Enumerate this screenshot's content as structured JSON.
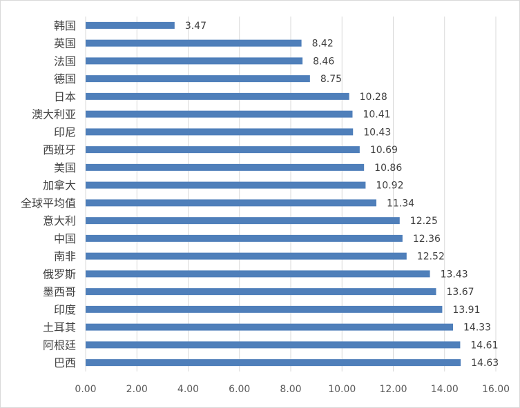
{
  "chart_data": {
    "type": "bar",
    "orientation": "horizontal",
    "categories": [
      "韩国",
      "英国",
      "法国",
      "德国",
      "日本",
      "澳大利亚",
      "印尼",
      "西班牙",
      "美国",
      "加拿大",
      "全球平均值",
      "意大利",
      "中国",
      "南非",
      "俄罗斯",
      "墨西哥",
      "印度",
      "土耳其",
      "阿根廷",
      "巴西"
    ],
    "values": [
      3.47,
      8.42,
      8.46,
      8.75,
      10.28,
      10.41,
      10.43,
      10.69,
      10.86,
      10.92,
      11.34,
      12.25,
      12.36,
      12.52,
      13.43,
      13.67,
      13.91,
      14.33,
      14.61,
      14.63
    ],
    "value_labels": [
      "3.47",
      "8.42",
      "8.46",
      "8.75",
      "10.28",
      "10.41",
      "10.43",
      "10.69",
      "10.86",
      "10.92",
      "11.34",
      "12.25",
      "12.36",
      "12.52",
      "13.43",
      "13.67",
      "13.91",
      "14.33",
      "14.61",
      "14.63"
    ],
    "xlim": [
      0,
      16
    ],
    "ticks": [
      0,
      2,
      4,
      6,
      8,
      10,
      12,
      14,
      16
    ],
    "tick_labels": [
      "0.00",
      "2.00",
      "4.00",
      "6.00",
      "8.00",
      "10.00",
      "12.00",
      "14.00",
      "16.00"
    ],
    "title": "",
    "xlabel": "",
    "ylabel": "",
    "grid": "vertical",
    "legend": "none",
    "colors": {
      "bar": "#4f7fba",
      "grid": "#d9d9d9",
      "text": "#404040"
    }
  }
}
